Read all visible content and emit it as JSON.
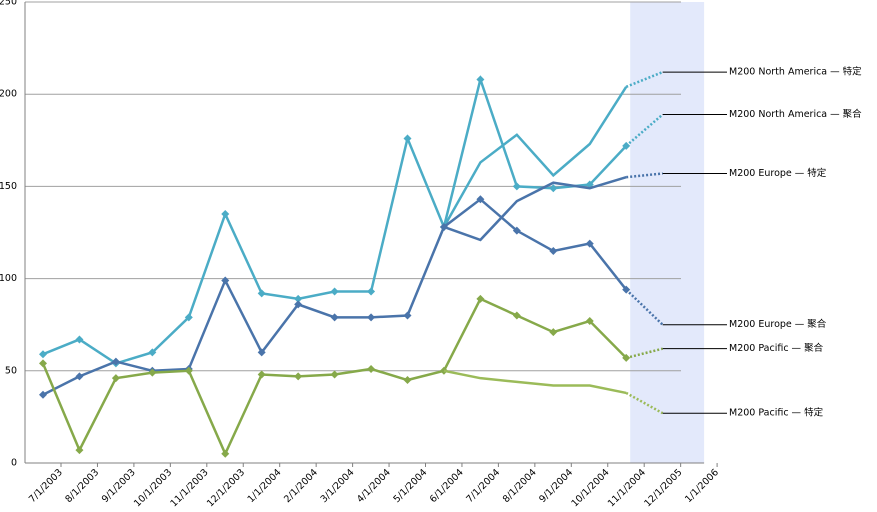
{
  "chart_data": {
    "type": "line",
    "categories": [
      "7/1/2003",
      "8/1/2003",
      "9/1/2003",
      "10/1/2003",
      "11/1/2003",
      "12/1/2003",
      "1/1/2004",
      "2/1/2004",
      "3/1/2004",
      "4/1/2004",
      "5/1/2004",
      "6/1/2004",
      "7/1/2004",
      "8/1/2004",
      "9/1/2004",
      "10/1/2004",
      "11/1/2004",
      "12/1/2005",
      "1/1/2006"
    ],
    "ylim": [
      0,
      250
    ],
    "yticks": [
      0,
      50,
      100,
      150,
      200,
      250
    ],
    "grid": true,
    "forecast_start": 16,
    "shade_color": "#e3e9fb",
    "series": [
      {
        "name": "M200 North America — 特定",
        "color": "#4bacc6",
        "markers": false,
        "values": [
          null,
          null,
          null,
          null,
          null,
          null,
          null,
          null,
          null,
          null,
          null,
          128,
          163,
          178,
          156,
          173,
          204,
          212,
          null
        ]
      },
      {
        "name": "M200 North America — 聚合",
        "color": "#4bacc6",
        "markers": true,
        "values": [
          59,
          67,
          54,
          60,
          79,
          135,
          92,
          89,
          93,
          93,
          176,
          128,
          208,
          150,
          149,
          151,
          172,
          189,
          null
        ]
      },
      {
        "name": "M200 Europe — 特定",
        "color": "#4a74aa",
        "markers": false,
        "values": [
          null,
          null,
          null,
          null,
          null,
          null,
          null,
          null,
          null,
          null,
          null,
          128,
          121,
          142,
          152,
          149,
          155,
          157,
          null
        ]
      },
      {
        "name": "M200 Europe — 聚合",
        "color": "#4a74aa",
        "markers": true,
        "values": [
          37,
          47,
          55,
          50,
          51,
          99,
          60,
          86,
          79,
          79,
          80,
          128,
          143,
          126,
          115,
          119,
          94,
          75,
          null
        ]
      },
      {
        "name": "M200 Pacific — 聚合",
        "color": "#86a94a",
        "markers": true,
        "values": [
          54,
          7,
          46,
          49,
          50,
          5,
          48,
          47,
          48,
          51,
          45,
          50,
          89,
          80,
          71,
          77,
          57,
          62,
          null
        ]
      },
      {
        "name": "M200 Pacific — 特定",
        "color": "#9bbb59",
        "markers": false,
        "values": [
          null,
          null,
          null,
          null,
          null,
          null,
          null,
          null,
          null,
          null,
          null,
          50,
          46,
          44,
          42,
          42,
          38,
          27,
          null
        ]
      }
    ]
  }
}
